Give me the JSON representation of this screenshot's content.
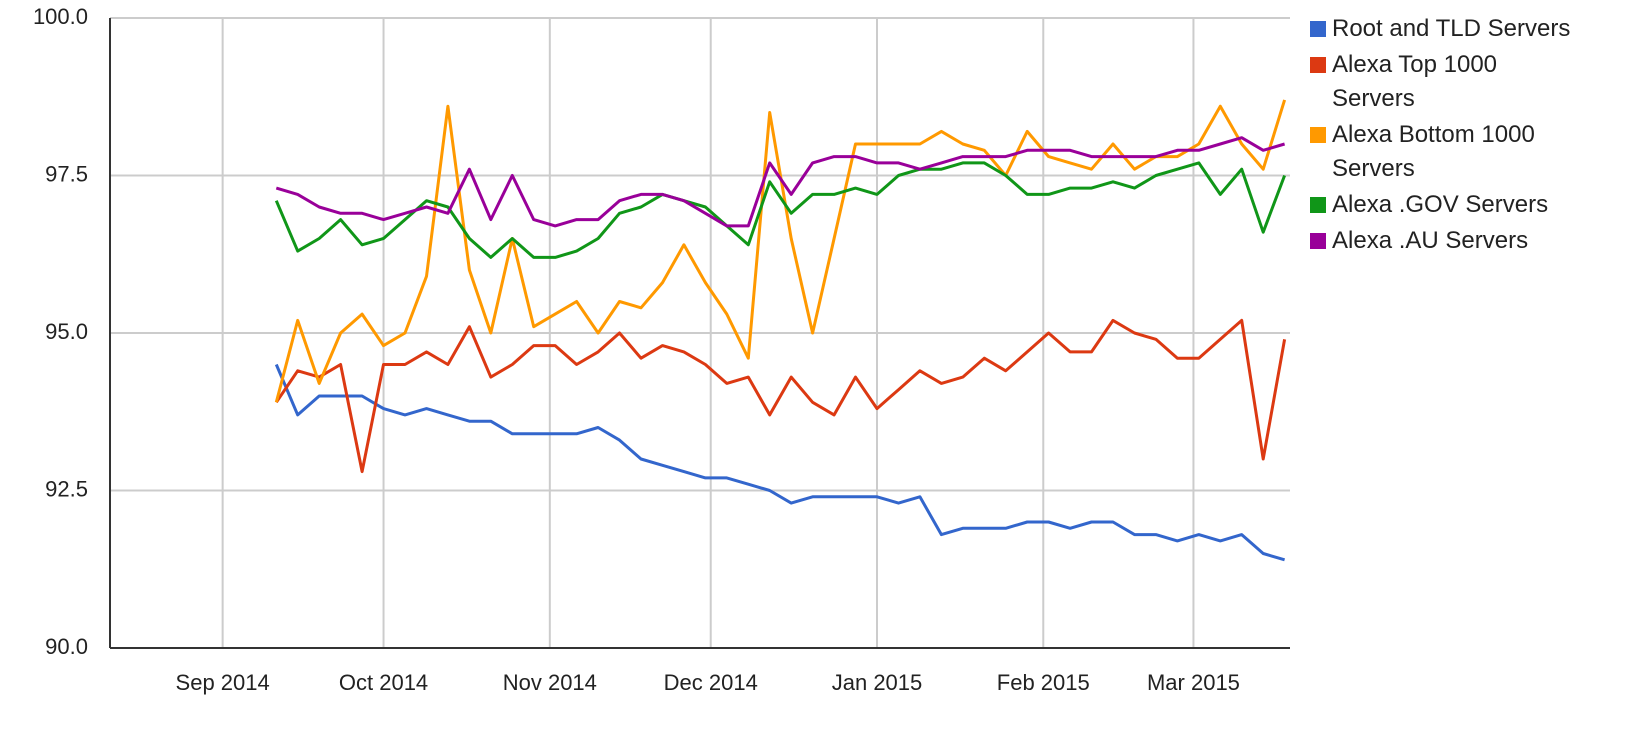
{
  "chart_data": {
    "type": "line",
    "x": [
      "2014-09-11",
      "2014-09-15",
      "2014-09-19",
      "2014-09-23",
      "2014-09-27",
      "2014-10-01",
      "2014-10-05",
      "2014-10-09",
      "2014-10-13",
      "2014-10-17",
      "2014-10-21",
      "2014-10-25",
      "2014-10-29",
      "2014-11-02",
      "2014-11-06",
      "2014-11-10",
      "2014-11-14",
      "2014-11-18",
      "2014-11-22",
      "2014-11-26",
      "2014-11-30",
      "2014-12-04",
      "2014-12-08",
      "2014-12-12",
      "2014-12-16",
      "2014-12-20",
      "2014-12-24",
      "2014-12-28",
      "2015-01-01",
      "2015-01-05",
      "2015-01-09",
      "2015-01-13",
      "2015-01-17",
      "2015-01-21",
      "2015-01-25",
      "2015-01-29",
      "2015-02-02",
      "2015-02-06",
      "2015-02-10",
      "2015-02-14",
      "2015-02-18",
      "2015-02-22",
      "2015-02-26",
      "2015-03-02",
      "2015-03-06",
      "2015-03-10",
      "2015-03-14",
      "2015-03-18"
    ],
    "series": [
      {
        "name": "Root and TLD Servers",
        "color": "#3366cc",
        "values": [
          94.5,
          93.7,
          94.0,
          94.0,
          94.0,
          93.8,
          93.7,
          93.8,
          93.7,
          93.6,
          93.6,
          93.4,
          93.4,
          93.4,
          93.4,
          93.5,
          93.3,
          93.0,
          92.9,
          92.8,
          92.7,
          92.7,
          92.6,
          92.5,
          92.3,
          92.4,
          92.4,
          92.4,
          92.4,
          92.3,
          92.4,
          91.8,
          91.9,
          91.9,
          91.9,
          92.0,
          92.0,
          91.9,
          92.0,
          92.0,
          91.8,
          91.8,
          91.7,
          91.8,
          91.7,
          91.8,
          91.5,
          91.4
        ]
      },
      {
        "name": "Alexa Top 1000 Servers",
        "color": "#dc3912",
        "values": [
          93.9,
          94.4,
          94.3,
          94.5,
          92.8,
          94.5,
          94.5,
          94.7,
          94.5,
          95.1,
          94.3,
          94.5,
          94.8,
          94.8,
          94.5,
          94.7,
          95.0,
          94.6,
          94.8,
          94.7,
          94.5,
          94.2,
          94.3,
          93.7,
          94.3,
          93.9,
          93.7,
          94.3,
          93.8,
          94.1,
          94.4,
          94.2,
          94.3,
          94.6,
          94.4,
          94.7,
          95.0,
          94.7,
          94.7,
          95.2,
          95.0,
          94.9,
          94.6,
          94.6,
          94.9,
          95.2,
          93.0,
          94.9
        ]
      },
      {
        "name": "Alexa Bottom 1000 Servers",
        "color": "#ff9900",
        "values": [
          93.9,
          95.2,
          94.2,
          95.0,
          95.3,
          94.8,
          95.0,
          95.9,
          98.6,
          96.0,
          95.0,
          96.5,
          95.1,
          95.3,
          95.5,
          95.0,
          95.5,
          95.4,
          95.8,
          96.4,
          95.8,
          95.3,
          94.6,
          98.5,
          96.5,
          95.0,
          96.5,
          98.0,
          98.0,
          98.0,
          98.0,
          98.2,
          98.0,
          97.9,
          97.5,
          98.2,
          97.8,
          97.7,
          97.6,
          98.0,
          97.6,
          97.8,
          97.8,
          98.0,
          98.6,
          98.0,
          97.6,
          98.7
        ]
      },
      {
        "name": "Alexa .GOV Servers",
        "color": "#109618",
        "values": [
          97.1,
          96.3,
          96.5,
          96.8,
          96.4,
          96.5,
          96.8,
          97.1,
          97.0,
          96.5,
          96.2,
          96.5,
          96.2,
          96.2,
          96.3,
          96.5,
          96.9,
          97.0,
          97.2,
          97.1,
          97.0,
          96.7,
          96.4,
          97.4,
          96.9,
          97.2,
          97.2,
          97.3,
          97.2,
          97.5,
          97.6,
          97.6,
          97.7,
          97.7,
          97.5,
          97.2,
          97.2,
          97.3,
          97.3,
          97.4,
          97.3,
          97.5,
          97.6,
          97.7,
          97.2,
          97.6,
          96.6,
          97.5
        ]
      },
      {
        "name": "Alexa .AU Servers",
        "color": "#990099",
        "values": [
          97.3,
          97.2,
          97.0,
          96.9,
          96.9,
          96.8,
          96.9,
          97.0,
          96.9,
          97.6,
          96.8,
          97.5,
          96.8,
          96.7,
          96.8,
          96.8,
          97.1,
          97.2,
          97.2,
          97.1,
          96.9,
          96.7,
          96.7,
          97.7,
          97.2,
          97.7,
          97.8,
          97.8,
          97.7,
          97.7,
          97.6,
          97.7,
          97.8,
          97.8,
          97.8,
          97.9,
          97.9,
          97.9,
          97.8,
          97.8,
          97.8,
          97.8,
          97.9,
          97.9,
          98.0,
          98.1,
          97.9,
          98.0
        ]
      }
    ],
    "xlim": [
      "2014-08-11",
      "2015-03-19"
    ],
    "xticks": [
      {
        "value": "2014-09-01",
        "label": "Sep 2014"
      },
      {
        "value": "2014-10-01",
        "label": "Oct 2014"
      },
      {
        "value": "2014-11-01",
        "label": "Nov 2014"
      },
      {
        "value": "2014-12-01",
        "label": "Dec 2014"
      },
      {
        "value": "2015-01-01",
        "label": "Jan 2015"
      },
      {
        "value": "2015-02-01",
        "label": "Feb 2015"
      },
      {
        "value": "2015-03-01",
        "label": "Mar 2015"
      }
    ],
    "ylim": [
      90,
      100
    ],
    "yticks": [
      {
        "value": 90,
        "label": "90.0"
      },
      {
        "value": 92.5,
        "label": "92.5"
      },
      {
        "value": 95,
        "label": "95.0"
      },
      {
        "value": 97.5,
        "label": "97.5"
      },
      {
        "value": 100,
        "label": "100.0"
      }
    ],
    "grid": true,
    "legend": "right"
  }
}
